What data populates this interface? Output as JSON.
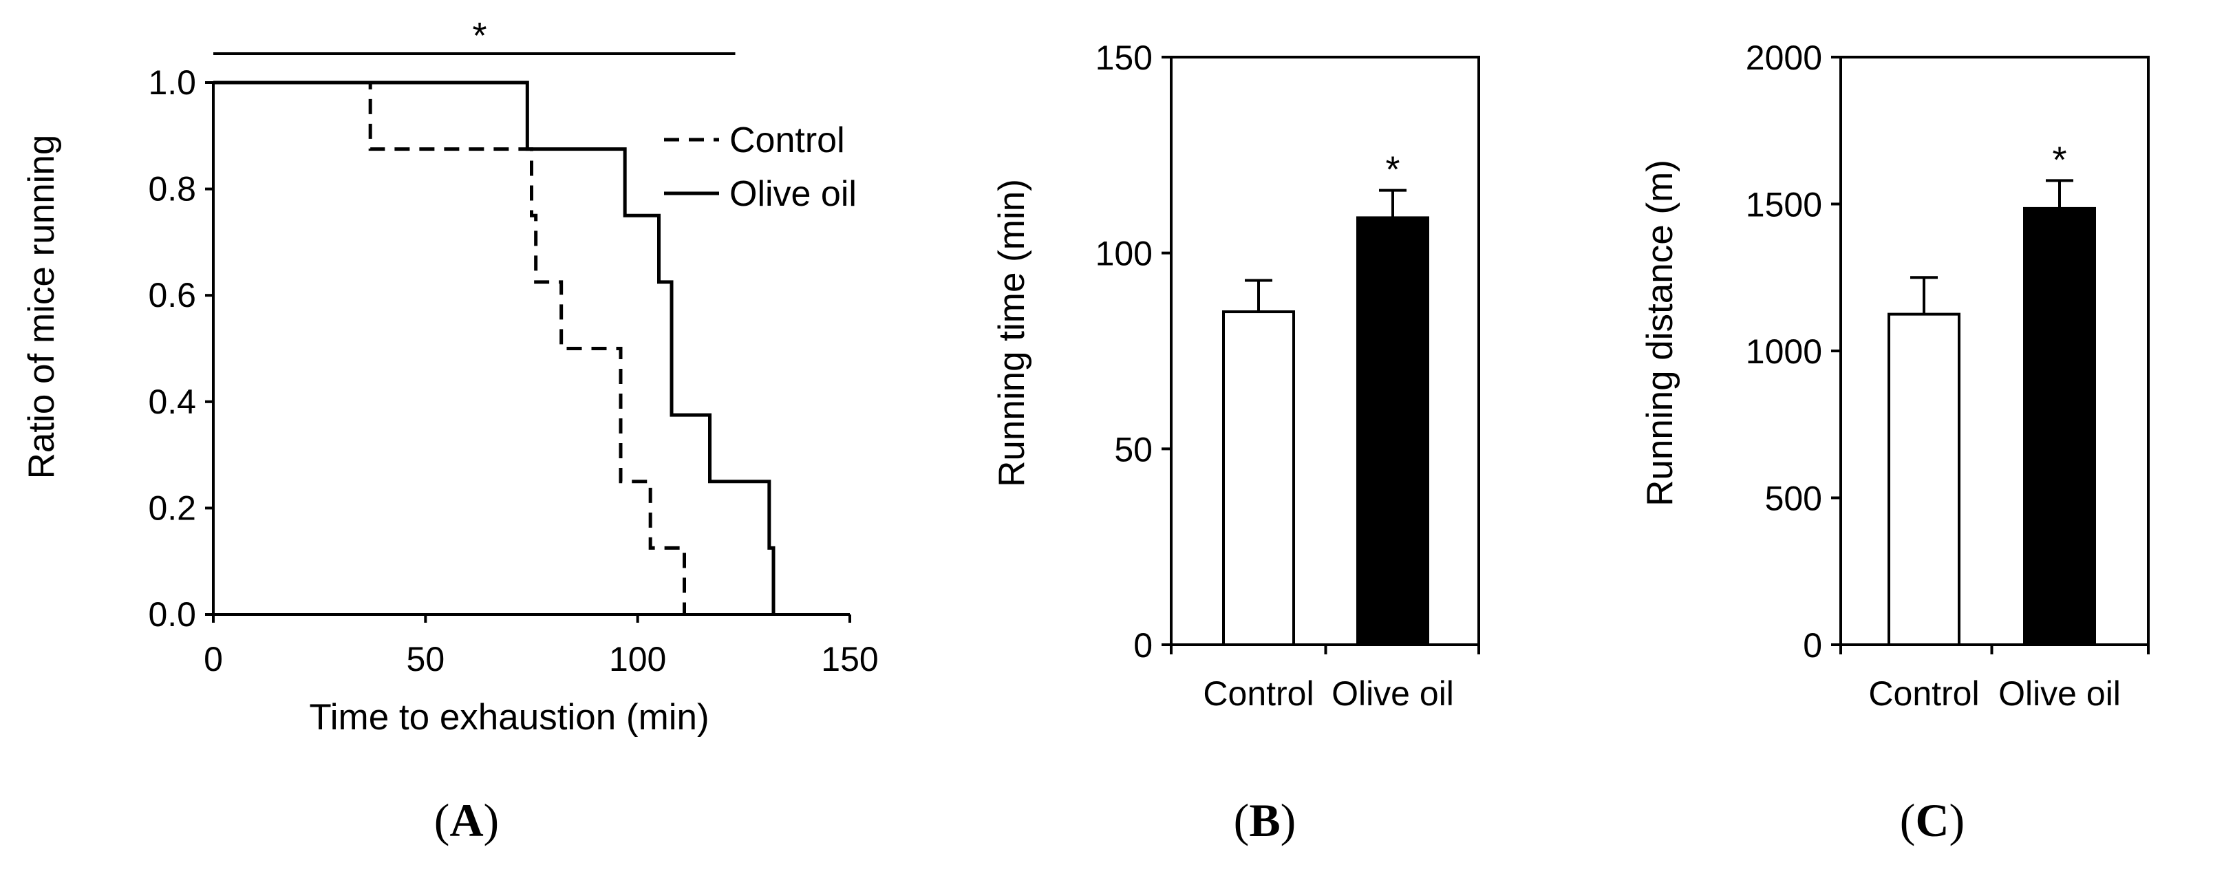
{
  "chart_data": [
    {
      "panel_label": "A",
      "type": "line",
      "subtype": "kaplan-meier step",
      "xlabel": "Time to exhaustion (min)",
      "ylabel": "Ratio of mice running",
      "xlim": [
        0,
        150
      ],
      "ylim": [
        0,
        1.0
      ],
      "xticks": [
        "0",
        "50",
        "100",
        "150"
      ],
      "yticks": [
        "0.0",
        "0.2",
        "0.4",
        "0.6",
        "0.8",
        "1.0"
      ],
      "series": [
        {
          "name": "Control",
          "style": "dashed",
          "points": [
            [
              0,
              1.0
            ],
            [
              37,
              1.0
            ],
            [
              37,
              0.875
            ],
            [
              75,
              0.875
            ],
            [
              75,
              0.75
            ],
            [
              76,
              0.75
            ],
            [
              76,
              0.625
            ],
            [
              82,
              0.625
            ],
            [
              82,
              0.5
            ],
            [
              96,
              0.5
            ],
            [
              96,
              0.25
            ],
            [
              103,
              0.25
            ],
            [
              103,
              0.125
            ],
            [
              111,
              0.125
            ],
            [
              111,
              0.0
            ]
          ]
        },
        {
          "name": "Olive oil",
          "style": "solid",
          "points": [
            [
              0,
              1.0
            ],
            [
              74,
              1.0
            ],
            [
              74,
              0.875
            ],
            [
              97,
              0.875
            ],
            [
              97,
              0.75
            ],
            [
              105,
              0.75
            ],
            [
              105,
              0.625
            ],
            [
              108,
              0.625
            ],
            [
              108,
              0.375
            ],
            [
              117,
              0.375
            ],
            [
              117,
              0.25
            ],
            [
              131,
              0.25
            ],
            [
              131,
              0.125
            ],
            [
              132,
              0.125
            ],
            [
              132,
              0.0
            ]
          ]
        }
      ],
      "significance": {
        "label": "*",
        "from": 0,
        "to": 123
      }
    },
    {
      "panel_label": "B",
      "type": "bar",
      "ylabel": "Running time (min)",
      "ylim": [
        0,
        150
      ],
      "yticks": [
        "0",
        "50",
        "100",
        "150"
      ],
      "categories": [
        "Control",
        "Olive oil"
      ],
      "values": [
        85,
        109
      ],
      "errors": [
        8,
        7
      ],
      "fills": [
        "#ffffff",
        "#000000"
      ],
      "annotations": [
        "",
        "*"
      ]
    },
    {
      "panel_label": "C",
      "type": "bar",
      "ylabel": "Running distance (m)",
      "ylim": [
        0,
        2000
      ],
      "yticks": [
        "0",
        "500",
        "1000",
        "1500",
        "2000"
      ],
      "categories": [
        "Control",
        "Olive oil"
      ],
      "values": [
        1125,
        1485
      ],
      "errors": [
        125,
        95
      ],
      "fills": [
        "#ffffff",
        "#000000"
      ],
      "annotations": [
        "",
        "*"
      ]
    }
  ]
}
